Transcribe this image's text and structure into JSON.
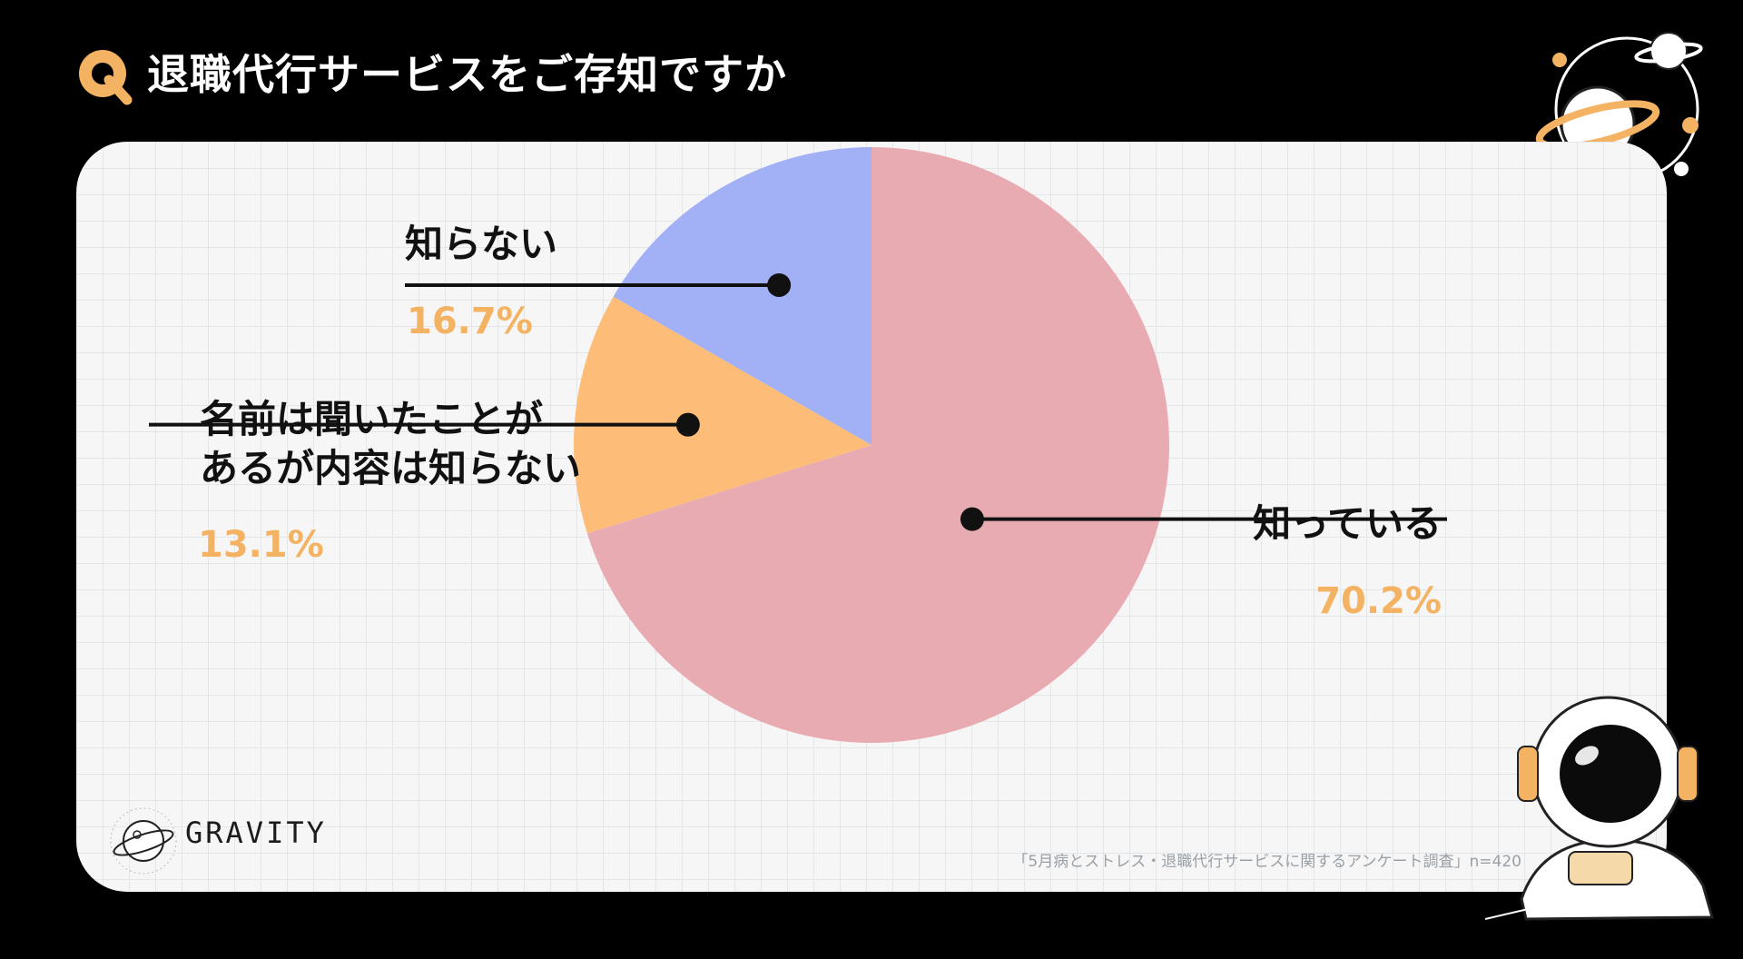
{
  "header": {
    "q_badge": "Q",
    "title": "退職代行サービスをご存知ですか"
  },
  "brand": {
    "name": "GRAVITY",
    "logo_icon": "planet-logo-icon"
  },
  "footer": {
    "source": "「5月病とストレス・退職代行サービスに関するアンケート調査」n=420"
  },
  "colors": {
    "background": "#000000",
    "card": "#f6f6f6",
    "accent": "#f4b263",
    "pink": "#e9abb2",
    "orange": "#fdbd79",
    "blue": "#a2b0f5"
  },
  "decorations": [
    "planet-orbit-illustration",
    "astronaut-illustration"
  ],
  "chart_data": {
    "type": "pie",
    "title": "退職代行サービスをご存知ですか",
    "start_angle_deg": 0,
    "direction": "clockwise",
    "slices": [
      {
        "label": "知っている",
        "value": 70.2,
        "display": "70.2%",
        "color": "#e9abb2"
      },
      {
        "label": "名前は聞いたことがあるが内容は知らない",
        "label_lines": [
          "名前は聞いたことが",
          "あるが内容は知らない"
        ],
        "value": 13.1,
        "display": "13.1%",
        "color": "#fdbd79"
      },
      {
        "label": "知らない",
        "value": 16.7,
        "display": "16.7%",
        "color": "#a2b0f5"
      }
    ]
  }
}
